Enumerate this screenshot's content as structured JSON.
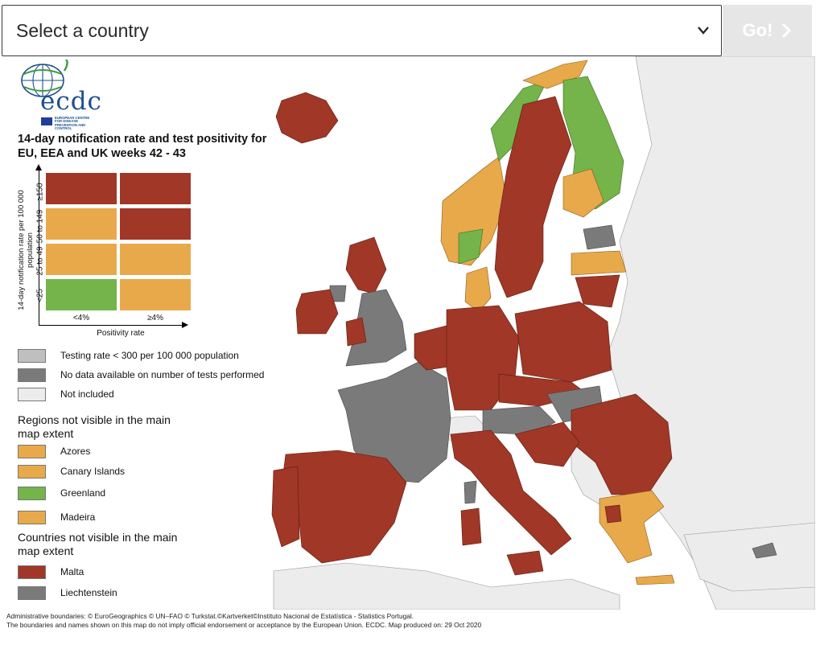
{
  "selector": {
    "placeholder": "Select a country",
    "go_label": "Go!"
  },
  "logo": {
    "text": "ecdc",
    "subtitle": "EUROPEAN CENTRE FOR DISEASE PREVENTION AND CONTROL"
  },
  "legend": {
    "title": "14-day notification rate and test positivity for EU, EEA and UK weeks 42 - 43",
    "y_axis_label": "14-day notification rate per 100 000 population",
    "x_axis_label": "Positivity rate",
    "rows": [
      "≥150",
      "50 to 149",
      "25 to 49",
      "<25"
    ],
    "columns": [
      "<4%",
      "≥4%"
    ],
    "matrix_colors": [
      [
        "#a13726",
        "#a13726"
      ],
      [
        "#e8a94b",
        "#a13726"
      ],
      [
        "#e8a94b",
        "#e8a94b"
      ],
      [
        "#74b44a",
        "#e8a94b"
      ]
    ],
    "status_items": [
      {
        "label": "Testing rate < 300 per 100 000 population",
        "color": "#bfbfbf"
      },
      {
        "label": "No data available on number of tests performed",
        "color": "#7a7a7a"
      },
      {
        "label": "Not included",
        "color": "#ececec"
      }
    ],
    "regions_title": "Regions not visible in the main map extent",
    "regions": [
      {
        "label": "Azores",
        "color": "#e8a94b"
      },
      {
        "label": "Canary Islands",
        "color": "#e8a94b"
      },
      {
        "label": "Greenland",
        "color": "#74b44a"
      },
      {
        "label": "Madeira",
        "color": "#e8a94b"
      }
    ],
    "countries_title": "Countries not visible in the main map extent",
    "countries": [
      {
        "label": "Malta",
        "color": "#a13726"
      },
      {
        "label": "Liechtenstein",
        "color": "#7a7a7a"
      }
    ]
  },
  "colors": {
    "red": "#a13726",
    "orange": "#e8a94b",
    "green": "#74b44a",
    "testing_low": "#bfbfbf",
    "no_data": "#7a7a7a",
    "not_included": "#ececec",
    "sea": "#ffffff"
  },
  "footer": {
    "line1": "Administrative boundaries: © EuroGeographics © UN–FAO © Turkstat.©Kartverket©Instituto Nacional de Estatística - Statistics Portugal.",
    "line2": "The boundaries and names shown on this map do not imply official endorsement or acceptance by the European Union. ECDC. Map produced on: 29 Oct 2020"
  }
}
